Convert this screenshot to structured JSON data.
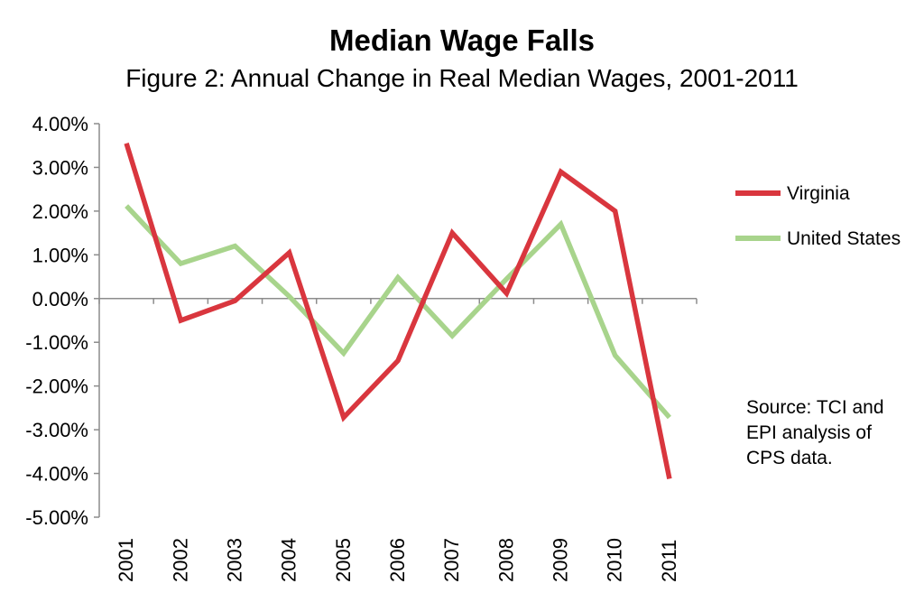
{
  "chart_data": {
    "type": "line",
    "title": "Median Wage Falls",
    "subtitle": "Figure 2: Annual Change in Real Median Wages, 2001-2011",
    "xlabel": "",
    "ylabel": "",
    "categories": [
      "2001",
      "2002",
      "2003",
      "2004",
      "2005",
      "2006",
      "2007",
      "2008",
      "2009",
      "2010",
      "2011"
    ],
    "ylim": [
      -5,
      4
    ],
    "yticks": [
      4,
      3,
      2,
      1,
      0,
      -1,
      -2,
      -3,
      -4,
      -5
    ],
    "ytick_labels": [
      "4.00%",
      "3.00%",
      "2.00%",
      "1.00%",
      "0.00%",
      "-1.00%",
      "-2.00%",
      "-3.00%",
      "-4.00%",
      "-5.00%"
    ],
    "grid": false,
    "legend_position": "right",
    "series": [
      {
        "name": "Virginia",
        "color": "#d9363e",
        "values": [
          3.55,
          -0.5,
          -0.05,
          1.05,
          -2.72,
          -1.42,
          1.5,
          0.12,
          2.9,
          2.0,
          -4.12
        ]
      },
      {
        "name": "United States",
        "color": "#a8d48c",
        "values": [
          2.12,
          0.8,
          1.2,
          0.05,
          -1.25,
          0.48,
          -0.85,
          0.45,
          1.7,
          -1.3,
          -2.72
        ]
      }
    ],
    "annotations": [
      "Source: TCI and",
      "EPI analysis of",
      "CPS data."
    ]
  }
}
